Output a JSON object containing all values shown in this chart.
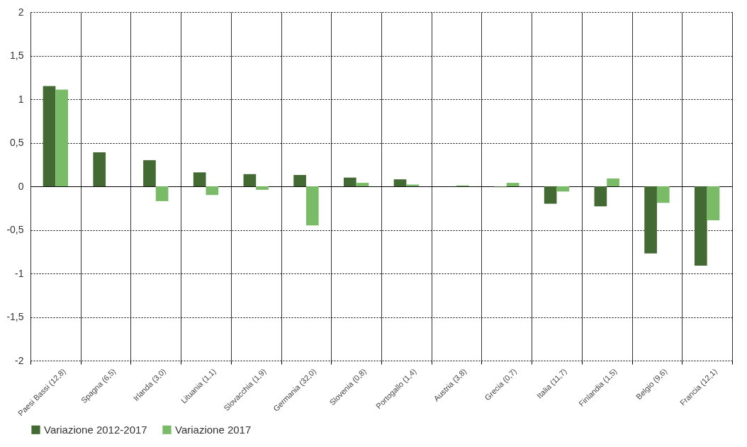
{
  "chart_data": {
    "type": "bar",
    "categories": [
      "Paesi Bassi (12,8)",
      "Spagna (6,5)",
      "Irlanda (3,0)",
      "Lituania (1,1)",
      "Slovacchia (1,9)",
      "Germania (32,0)",
      "Slovenia (0,8)",
      "Portogallo (1,4)",
      "Austria (3,8)",
      "Grecia (0,7)",
      "Italia (11,7)",
      "Finlandia (1,5)",
      "Belgio (9,6)",
      "Francia (12,1)"
    ],
    "series": [
      {
        "name": "Variazione 2012-2017",
        "color": "#446a33",
        "values": [
          1.15,
          0.39,
          0.3,
          0.16,
          0.14,
          0.13,
          0.1,
          0.08,
          0,
          -0.01,
          -0.2,
          -0.23,
          -0.77,
          -0.91
        ]
      },
      {
        "name": "Variazione 2017",
        "color": "#79bb67",
        "values": [
          1.11,
          0,
          -0.17,
          -0.1,
          -0.04,
          -0.45,
          0.04,
          0.02,
          0.01,
          0.04,
          -0.06,
          0.09,
          -0.19,
          -0.39
        ]
      }
    ],
    "ylim": [
      -2,
      2
    ],
    "yticks": [
      -2,
      {
        "value": -1.5,
        "label": "-1,5"
      },
      -1,
      {
        "value": -0.5,
        "label": "-0,5"
      },
      0,
      {
        "value": 0.5,
        "label": "0,5"
      },
      1,
      {
        "value": 1.5,
        "label": "1,5"
      },
      2
    ],
    "grid": true,
    "legend": "bottom left"
  }
}
